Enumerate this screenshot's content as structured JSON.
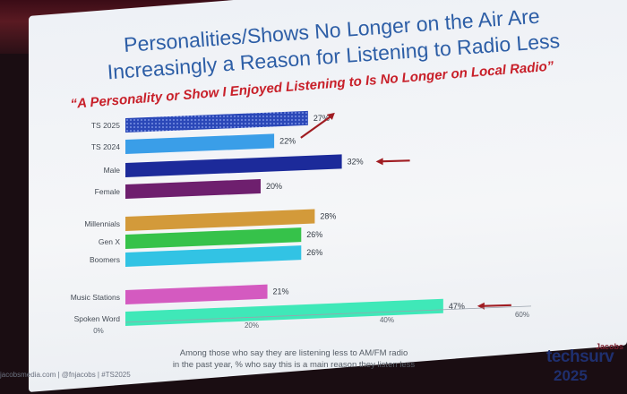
{
  "slide": {
    "title_line1": "Personalities/Shows No Longer on the Air Are",
    "title_line2": "Increasingly a Reason for Listening to Radio Less",
    "subtitle": "“A Personality or Show I Enjoyed Listening to Is No Longer on Local Radio”",
    "footnote_line1": "Among those who say they are listening less to AM/FM radio",
    "footnote_line2": "in the past year, % who say this is a main reason they listen less",
    "source": "jacobsmedia.com  |  @fnjacobs  |  #TS2025"
  },
  "logo": {
    "brand": "Jacobs",
    "name": "techsurv",
    "year": "2025"
  },
  "colors": {
    "title": "#2d5ea6",
    "subtitle": "#c8202a",
    "arrow": "#a01c22"
  },
  "chart_data": {
    "type": "bar",
    "orientation": "horizontal",
    "xlim": [
      0,
      60
    ],
    "x_ticks": [
      "0%",
      "20%",
      "40%",
      "60%"
    ],
    "bars": [
      {
        "label": "TS 2025",
        "value": 27,
        "value_label": "27%",
        "color": "#2b48b8",
        "pattern": "dotted",
        "highlight": "up-arrow"
      },
      {
        "label": "TS 2024",
        "value": 22,
        "value_label": "22%",
        "color": "#3a9ee8"
      },
      {
        "label": "Male",
        "value": 32,
        "value_label": "32%",
        "color": "#1c2a9a",
        "highlight": "left-arrow"
      },
      {
        "label": "Female",
        "value": 20,
        "value_label": "20%",
        "color": "#6e1f6e"
      },
      {
        "label": "Millennials",
        "value": 28,
        "value_label": "28%",
        "color": "#d39a3a"
      },
      {
        "label": "Gen X",
        "value": 26,
        "value_label": "26%",
        "color": "#36c24a"
      },
      {
        "label": "Boomers",
        "value": 26,
        "value_label": "26%",
        "color": "#32c3e4"
      },
      {
        "label": "Music Stations",
        "value": 21,
        "value_label": "21%",
        "color": "#d45ac0"
      },
      {
        "label": "Spoken Word",
        "value": 47,
        "value_label": "47%",
        "color": "#3fe8b8",
        "highlight": "left-arrow"
      }
    ]
  }
}
